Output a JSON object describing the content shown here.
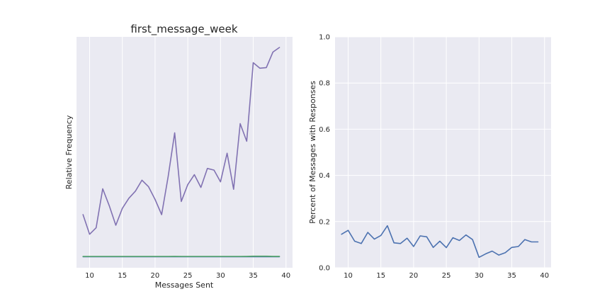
{
  "chart_data": [
    {
      "type": "line",
      "title": "first_message_week",
      "xlabel": "Messages Sent",
      "ylabel": "Relative Frequency",
      "xlim": [
        8,
        41
      ],
      "ylim": [
        0,
        1
      ],
      "x_ticks": [
        10,
        15,
        20,
        25,
        30,
        35,
        40
      ],
      "y_ticks_shown": false,
      "grid": true,
      "x": [
        9,
        10,
        11,
        12,
        13,
        14,
        15,
        16,
        17,
        18,
        19,
        20,
        21,
        22,
        23,
        24,
        25,
        26,
        27,
        28,
        29,
        30,
        31,
        32,
        33,
        34,
        35,
        36,
        37,
        38,
        39
      ],
      "series": [
        {
          "color": "#8172b2",
          "values": [
            0.23,
            0.145,
            0.173,
            0.342,
            0.269,
            0.184,
            0.257,
            0.301,
            0.332,
            0.379,
            0.351,
            0.296,
            0.23,
            0.395,
            0.584,
            0.287,
            0.36,
            0.403,
            0.348,
            0.43,
            0.423,
            0.372,
            0.496,
            0.34,
            0.624,
            0.548,
            0.888,
            0.864,
            0.867,
            0.934,
            0.954
          ]
        },
        {
          "color": "#4c72b0",
          "values": [
            0.048,
            0.048,
            0.048,
            0.048,
            0.048,
            0.048,
            0.048,
            0.048,
            0.048,
            0.048,
            0.048,
            0.048,
            0.048,
            0.048,
            0.048,
            0.048,
            0.048,
            0.048,
            0.048,
            0.048,
            0.048,
            0.048,
            0.048,
            0.048,
            0.048,
            0.048,
            0.048,
            0.048,
            0.048,
            0.048,
            0.048
          ]
        },
        {
          "color": "#55a868",
          "values": [
            0.049,
            0.049,
            0.049,
            0.049,
            0.049,
            0.049,
            0.049,
            0.049,
            0.049,
            0.049,
            0.049,
            0.049,
            0.049,
            0.049,
            0.0495,
            0.049,
            0.049,
            0.049,
            0.049,
            0.049,
            0.049,
            0.049,
            0.049,
            0.049,
            0.049,
            0.0495,
            0.05,
            0.05,
            0.05,
            0.0495,
            0.0495
          ]
        }
      ]
    },
    {
      "type": "line",
      "title": "",
      "xlabel": "",
      "ylabel": "Percent of Messages with Responses",
      "xlim": [
        8,
        41
      ],
      "ylim": [
        0.0,
        1.0
      ],
      "x_ticks": [
        10,
        15,
        20,
        25,
        30,
        35,
        40
      ],
      "y_ticks": [
        0.0,
        0.2,
        0.4,
        0.6,
        0.8,
        1.0
      ],
      "y_tick_labels": [
        "0.0",
        "0.2",
        "0.4",
        "0.6",
        "0.8",
        "1.0"
      ],
      "grid": true,
      "x": [
        9,
        10,
        11,
        12,
        13,
        14,
        15,
        16,
        17,
        18,
        19,
        20,
        21,
        22,
        23,
        24,
        25,
        26,
        27,
        28,
        29,
        30,
        31,
        32,
        33,
        34,
        35,
        36,
        37,
        38,
        39
      ],
      "series": [
        {
          "color": "#4c72b0",
          "values": [
            0.145,
            0.162,
            0.115,
            0.105,
            0.153,
            0.124,
            0.14,
            0.182,
            0.108,
            0.105,
            0.128,
            0.092,
            0.138,
            0.134,
            0.088,
            0.115,
            0.087,
            0.13,
            0.118,
            0.142,
            0.122,
            0.045,
            0.06,
            0.072,
            0.055,
            0.065,
            0.088,
            0.092,
            0.122,
            0.112,
            0.112
          ]
        }
      ]
    }
  ]
}
